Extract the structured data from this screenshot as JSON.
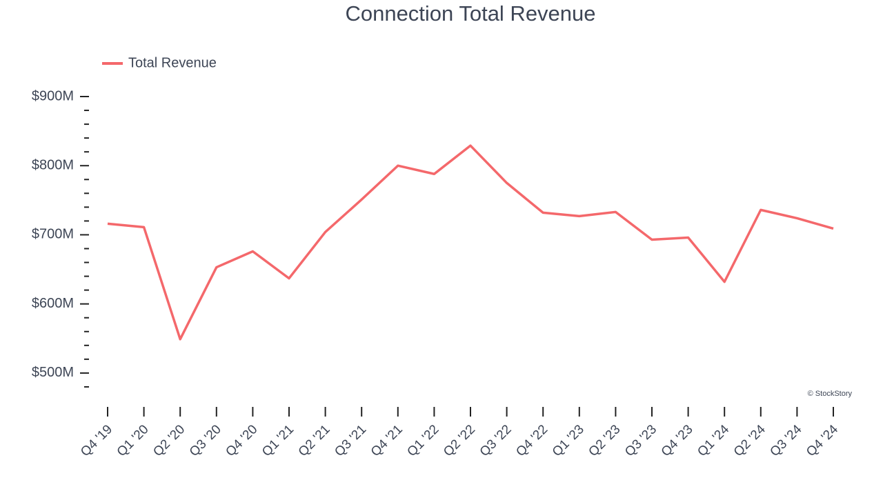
{
  "chart_data": {
    "type": "line",
    "title": "Connection Total Revenue",
    "categories": [
      "Q4 '19",
      "Q1 '20",
      "Q2 '20",
      "Q3 '20",
      "Q4 '20",
      "Q1 '21",
      "Q2 '21",
      "Q3 '21",
      "Q4 '21",
      "Q1 '22",
      "Q2 '22",
      "Q3 '22",
      "Q4 '22",
      "Q1 '23",
      "Q2 '23",
      "Q3 '23",
      "Q4 '23",
      "Q1 '24",
      "Q2 '24",
      "Q3 '24",
      "Q4 '24"
    ],
    "series": [
      {
        "name": "Total Revenue",
        "color": "#f4686b",
        "values": [
          716,
          711,
          549,
          653,
          676,
          637,
          704,
          751,
          800,
          788,
          829,
          775,
          732,
          727,
          733,
          693,
          696,
          632,
          736,
          724,
          709
        ]
      }
    ],
    "ylim": [
      460,
      900
    ],
    "yticks": [
      {
        "value": 500,
        "label": "$500M"
      },
      {
        "value": 600,
        "label": "$600M"
      },
      {
        "value": 700,
        "label": "$700M"
      },
      {
        "value": 800,
        "label": "$800M"
      },
      {
        "value": 900,
        "label": "$900M"
      }
    ],
    "yminorticks": [
      480,
      520,
      540,
      560,
      580,
      620,
      640,
      660,
      680,
      720,
      740,
      760,
      780,
      820,
      840,
      860,
      880
    ],
    "legend": "top-left",
    "credit": "© StockStory"
  }
}
